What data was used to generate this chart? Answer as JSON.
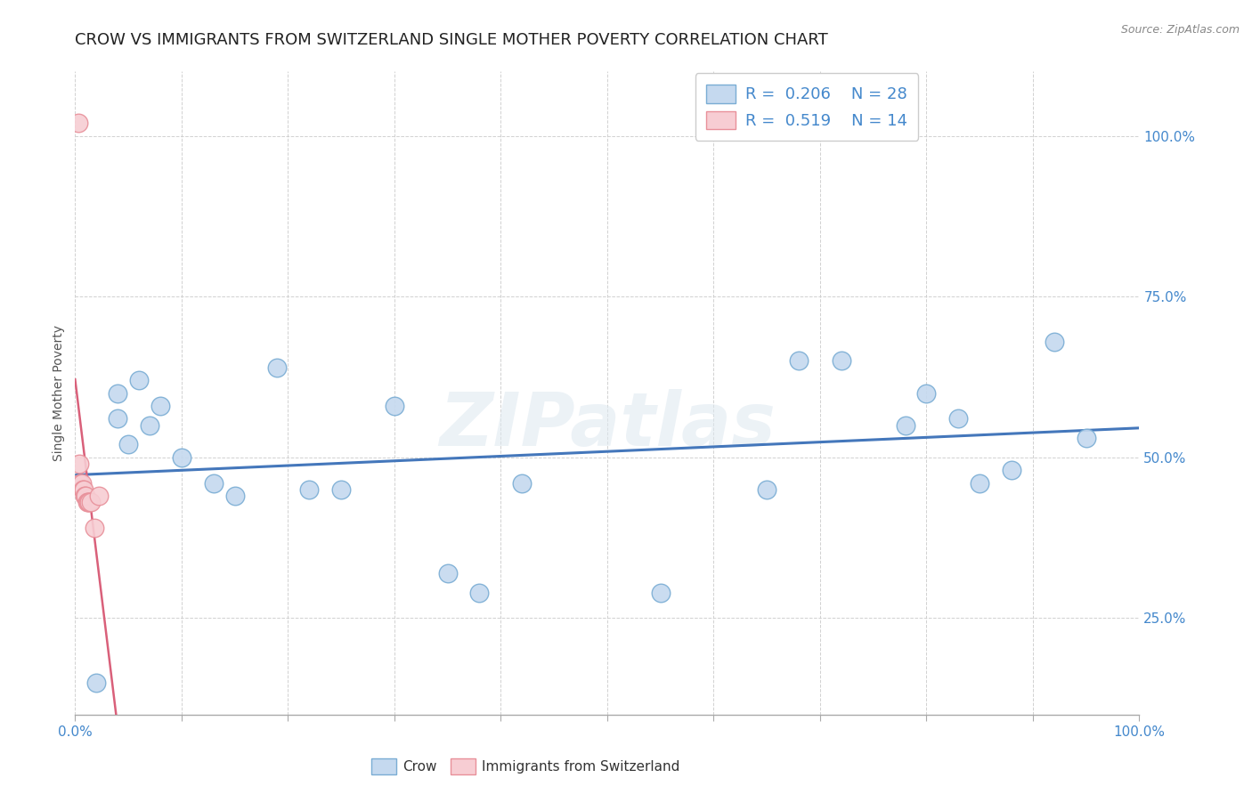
{
  "title": "CROW VS IMMIGRANTS FROM SWITZERLAND SINGLE MOTHER POVERTY CORRELATION CHART",
  "source": "Source: ZipAtlas.com",
  "xlabel_crow": "Crow",
  "xlabel_swiss": "Immigrants from Switzerland",
  "ylabel": "Single Mother Poverty",
  "background_color": "#ffffff",
  "watermark": "ZIPatlas",
  "crow_color": "#c5d9ef",
  "crow_edge_color": "#7aadd4",
  "swiss_color": "#f7cdd3",
  "swiss_edge_color": "#e8909a",
  "trendline_crow_color": "#4477bb",
  "trendline_swiss_color": "#d9607a",
  "legend_R_crow": "0.206",
  "legend_N_crow": "28",
  "legend_R_swiss": "0.519",
  "legend_N_swiss": "14",
  "crow_x": [
    0.02,
    0.04,
    0.04,
    0.05,
    0.06,
    0.07,
    0.08,
    0.1,
    0.13,
    0.15,
    0.19,
    0.22,
    0.25,
    0.3,
    0.35,
    0.38,
    0.42,
    0.55,
    0.65,
    0.68,
    0.72,
    0.78,
    0.8,
    0.83,
    0.85,
    0.88,
    0.92,
    0.95
  ],
  "crow_y": [
    0.15,
    0.6,
    0.56,
    0.52,
    0.62,
    0.55,
    0.58,
    0.5,
    0.46,
    0.44,
    0.64,
    0.45,
    0.45,
    0.58,
    0.32,
    0.29,
    0.46,
    0.29,
    0.45,
    0.65,
    0.65,
    0.55,
    0.6,
    0.56,
    0.46,
    0.48,
    0.68,
    0.53
  ],
  "swiss_x": [
    0.003,
    0.004,
    0.005,
    0.006,
    0.007,
    0.008,
    0.009,
    0.01,
    0.011,
    0.012,
    0.013,
    0.015,
    0.018,
    0.022
  ],
  "swiss_y": [
    1.02,
    0.49,
    0.46,
    0.46,
    0.45,
    0.45,
    0.44,
    0.44,
    0.43,
    0.43,
    0.43,
    0.43,
    0.39,
    0.44
  ],
  "xlim": [
    0.0,
    1.0
  ],
  "ylim": [
    0.1,
    1.1
  ],
  "ytick_positions": [
    0.25,
    0.5,
    0.75,
    1.0
  ],
  "ytick_labels": [
    "25.0%",
    "50.0%",
    "75.0%",
    "100.0%"
  ],
  "xtick_positions": [
    0.0,
    0.1,
    0.2,
    0.3,
    0.4,
    0.5,
    0.6,
    0.7,
    0.8,
    0.9,
    1.0
  ],
  "grid_color": "#cccccc",
  "axis_color": "#4488cc",
  "tick_color": "#4488cc",
  "title_fontsize": 13,
  "label_fontsize": 10,
  "tick_fontsize": 11,
  "source_fontsize": 9,
  "legend_fontsize": 13
}
